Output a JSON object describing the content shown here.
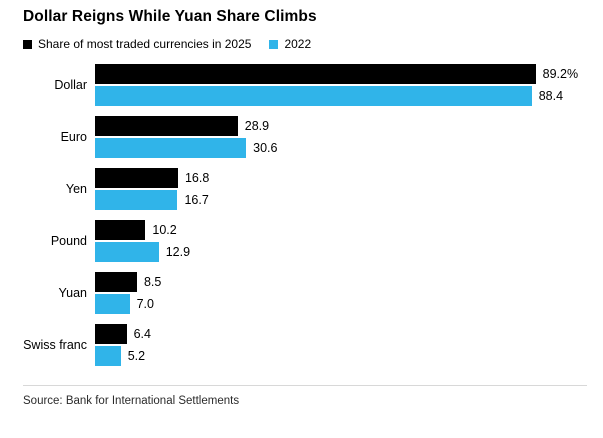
{
  "chart_data": {
    "type": "bar",
    "orientation": "horizontal",
    "title": "Dollar Reigns While Yuan Share Climbs",
    "categories": [
      "Dollar",
      "Euro",
      "Yen",
      "Pound",
      "Yuan",
      "Swiss franc"
    ],
    "series": [
      {
        "name": "Share of most traded currencies in 2025",
        "color": "#000000",
        "values": [
          89.2,
          28.9,
          16.8,
          10.2,
          8.5,
          6.4
        ],
        "value_labels": [
          "89.2%",
          "28.9",
          "16.8",
          "10.2",
          "8.5",
          "6.4"
        ]
      },
      {
        "name": "2022",
        "color": "#30b4e9",
        "values": [
          88.4,
          30.6,
          16.7,
          12.9,
          7.0,
          5.2
        ],
        "value_labels": [
          "88.4",
          "30.6",
          "16.7",
          "12.9",
          "7.0",
          "5.2"
        ]
      }
    ],
    "xlim": [
      0,
      100
    ],
    "grid": false,
    "legend_position": "top"
  },
  "source": "Source: Bank for International Settlements"
}
